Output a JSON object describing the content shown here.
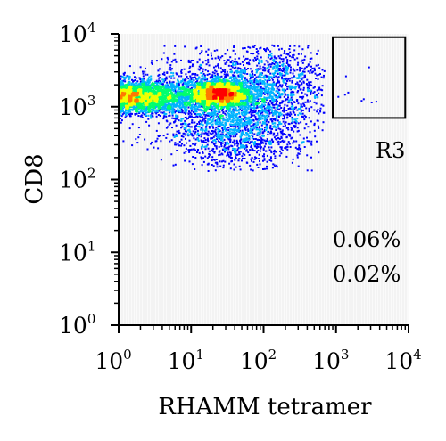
{
  "chart_data": {
    "type": "scatter",
    "subtype": "flow-cytometry-density-dot-plot",
    "xlabel": "RHAMM tetramer",
    "ylabel": "CD8",
    "x_scale": "log",
    "y_scale": "log",
    "xlim": [
      1,
      10000
    ],
    "ylim": [
      1,
      10000
    ],
    "x_ticks": [
      {
        "base": "10",
        "exp": "0"
      },
      {
        "base": "10",
        "exp": "1"
      },
      {
        "base": "10",
        "exp": "2"
      },
      {
        "base": "10",
        "exp": "3"
      },
      {
        "base": "10",
        "exp": "4"
      }
    ],
    "y_ticks": [
      {
        "base": "10",
        "exp": "0"
      },
      {
        "base": "10",
        "exp": "1"
      },
      {
        "base": "10",
        "exp": "2"
      },
      {
        "base": "10",
        "exp": "3"
      },
      {
        "base": "10",
        "exp": "4"
      }
    ],
    "gate": {
      "name": "R3",
      "x_range": [
        900,
        9000
      ],
      "y_range": [
        700,
        9000
      ]
    },
    "annotations": [
      "0.06%",
      "0.02%"
    ],
    "population": {
      "peak": {
        "x": 25,
        "y": 1500
      },
      "x_extent": [
        1,
        700
      ],
      "y_extent": [
        130,
        7000
      ],
      "density_colors": [
        "#0000ff",
        "#00b4ff",
        "#00ff6e",
        "#f0ff00",
        "#ff7800",
        "#ff0000"
      ]
    },
    "grid": false,
    "legend": "none"
  }
}
